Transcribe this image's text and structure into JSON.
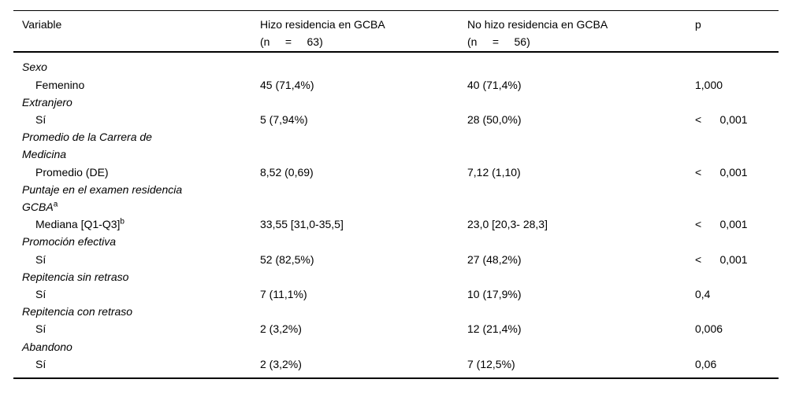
{
  "table": {
    "header": {
      "col1": "Variable",
      "col2_line1": "Hizo residencia en GCBA",
      "col2_line2": "(n     =     63)",
      "col3_line1": "No hizo residencia en GCBA",
      "col3_line2": "(n     =     56)",
      "col4": "p"
    },
    "rows": [
      {
        "type": "group",
        "label": "Sexo"
      },
      {
        "type": "item",
        "label": "Femenino",
        "col2": "45 (71,4%)",
        "col3": "40 (71,4%)",
        "p": "1,000"
      },
      {
        "type": "group",
        "label": "Extranjero"
      },
      {
        "type": "item",
        "label": "Sí",
        "col2": "5 (7,94%)",
        "col3": "28 (50,0%)",
        "p": "<      0,001"
      },
      {
        "type": "group",
        "label": "Promedio de la Carrera de Medicina"
      },
      {
        "type": "item",
        "label": "Promedio (DE)",
        "col2": "8,52 (0,69)",
        "col3": "7,12 (1,10)",
        "p": "<      0,001"
      },
      {
        "type": "group",
        "label": "Puntaje en el examen residencia GCBA",
        "sup": "a"
      },
      {
        "type": "item",
        "label": "Mediana [Q1-Q3]",
        "sup": "b",
        "col2": "33,55 [31,0-35,5]",
        "col3": "23,0 [20,3- 28,3]",
        "p": "<      0,001"
      },
      {
        "type": "group",
        "label": "Promoción efectiva"
      },
      {
        "type": "item",
        "label": "Sí",
        "col2": "52 (82,5%)",
        "col3": "27 (48,2%)",
        "p": "<      0,001"
      },
      {
        "type": "group",
        "label": "Repitencia sin retraso"
      },
      {
        "type": "item",
        "label": "Sí",
        "col2": "7 (11,1%)",
        "col3": "10 (17,9%)",
        "p": "0,4"
      },
      {
        "type": "group",
        "label": "Repitencia con retraso"
      },
      {
        "type": "item",
        "label": "Sí",
        "col2": "2 (3,2%)",
        "col3": "12 (21,4%)",
        "p": "0,006"
      },
      {
        "type": "group",
        "label": "Abandono"
      },
      {
        "type": "item",
        "label": "Sí",
        "col2": "2 (3,2%)",
        "col3": "7 (12,5%)",
        "p": "0,06"
      }
    ]
  }
}
